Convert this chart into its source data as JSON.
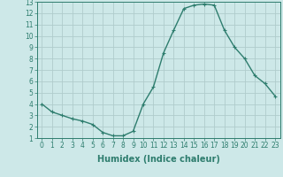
{
  "x": [
    0,
    1,
    2,
    3,
    4,
    5,
    6,
    7,
    8,
    9,
    10,
    11,
    12,
    13,
    14,
    15,
    16,
    17,
    18,
    19,
    20,
    21,
    22,
    23
  ],
  "y": [
    4.0,
    3.3,
    3.0,
    2.7,
    2.5,
    2.2,
    1.5,
    1.2,
    1.2,
    1.6,
    4.0,
    5.5,
    8.5,
    10.5,
    12.4,
    12.7,
    12.8,
    12.7,
    10.5,
    9.0,
    8.0,
    6.5,
    5.8,
    4.7
  ],
  "line_color": "#2e7d6e",
  "marker": "+",
  "marker_size": 3.5,
  "bg_color": "#cde8e8",
  "grid_color": "#b0cccc",
  "xlabel": "Humidex (Indice chaleur)",
  "xlim": [
    -0.5,
    23.5
  ],
  "ylim": [
    1,
    13
  ],
  "yticks": [
    1,
    2,
    3,
    4,
    5,
    6,
    7,
    8,
    9,
    10,
    11,
    12,
    13
  ],
  "xticks": [
    0,
    1,
    2,
    3,
    4,
    5,
    6,
    7,
    8,
    9,
    10,
    11,
    12,
    13,
    14,
    15,
    16,
    17,
    18,
    19,
    20,
    21,
    22,
    23
  ],
  "tick_label_fontsize": 5.5,
  "xlabel_fontsize": 7,
  "line_width": 1.0,
  "marker_edge_width": 0.8
}
